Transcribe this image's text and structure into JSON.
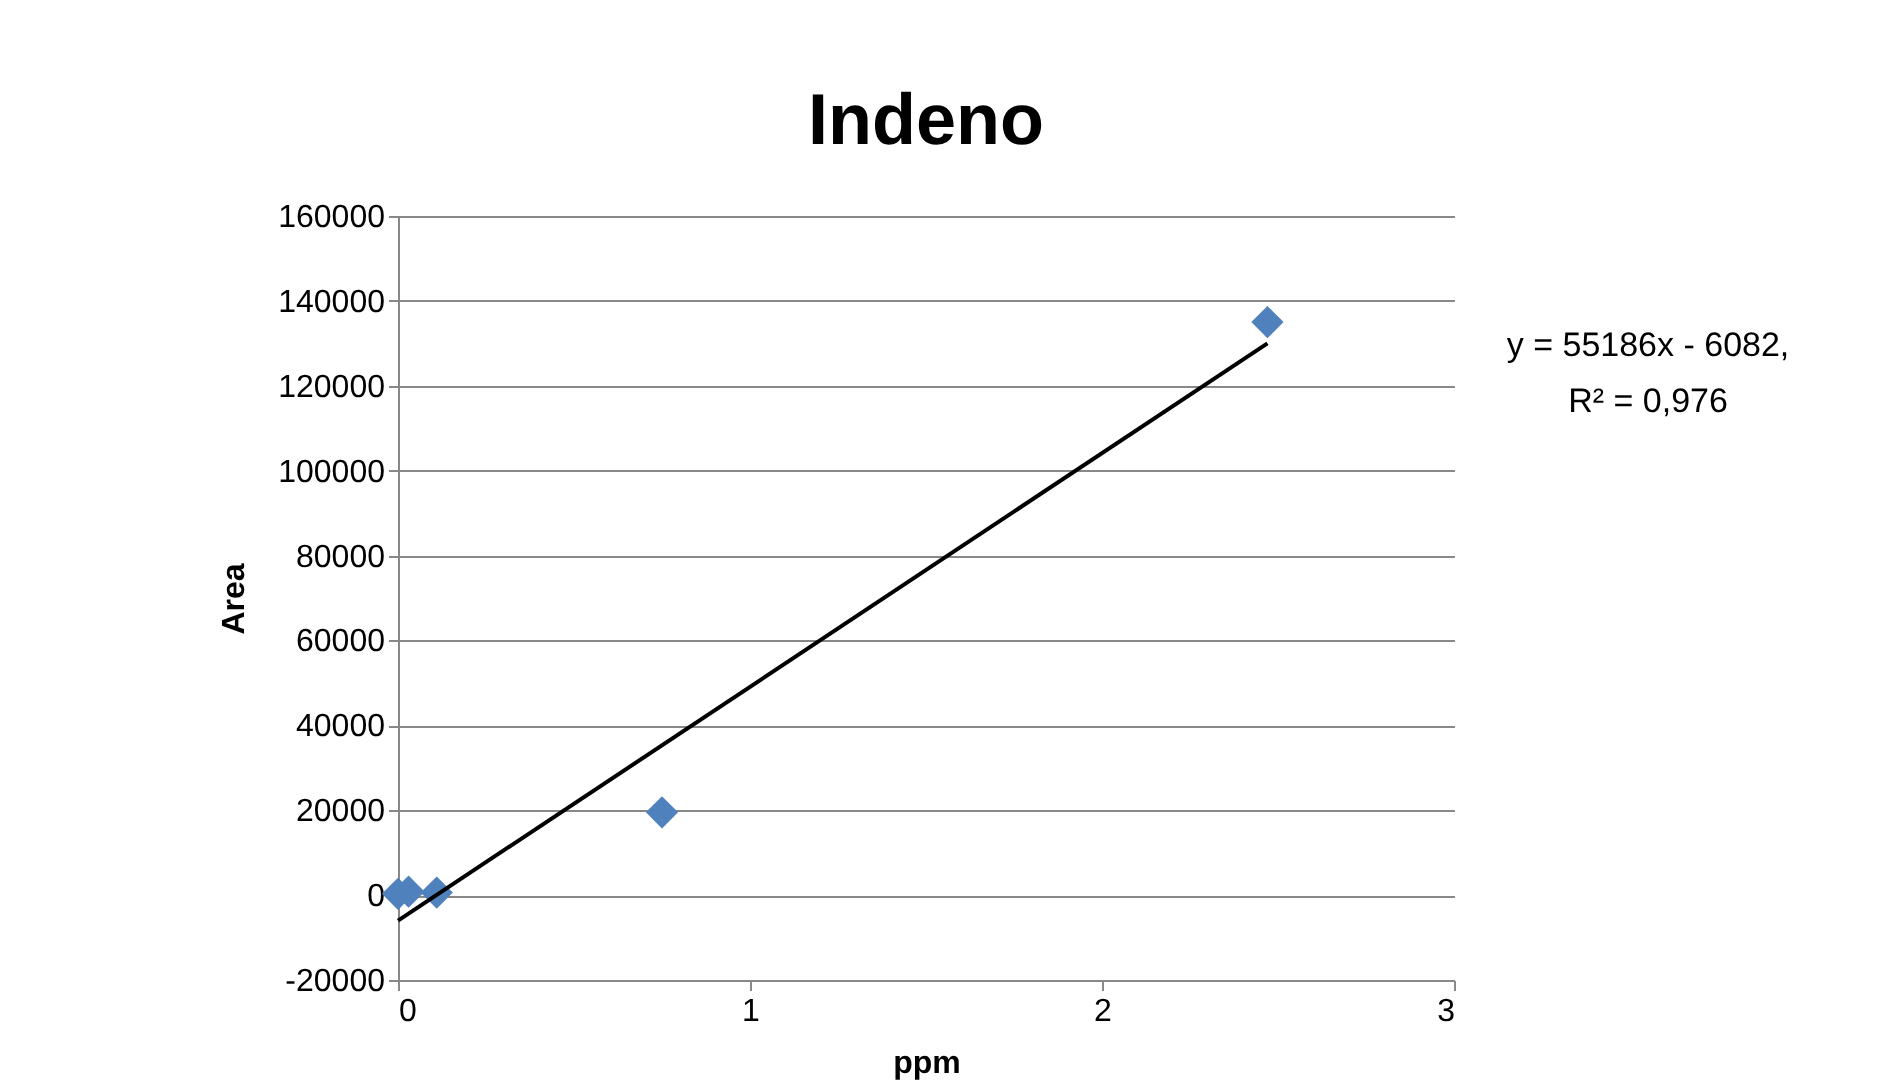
{
  "chart_data": {
    "type": "scatter",
    "title": "Indeno",
    "xlabel": "ppm",
    "ylabel": "Area",
    "series": [
      {
        "color": "#4f81bd",
        "marker": "diamond",
        "x": [
          0,
          0.03,
          0.11,
          0.75,
          2.47
        ],
        "values": [
          300,
          800,
          600,
          19500,
          135000
        ]
      },
      {
        "type": "line",
        "color": "#000000",
        "x": [
          0,
          2.47
        ],
        "values": [
          -6000,
          130000
        ]
      }
    ],
    "annotations": [
      "y = 55186x - 6082,",
      "R² = 0,976"
    ],
    "xlim": [
      0,
      3
    ],
    "xticks": [
      0,
      1,
      2,
      3
    ],
    "ylim": [
      -20000,
      160000
    ],
    "yticks": [
      -20000,
      0,
      20000,
      40000,
      60000,
      80000,
      100000,
      120000,
      140000,
      160000
    ],
    "grid": "y"
  }
}
